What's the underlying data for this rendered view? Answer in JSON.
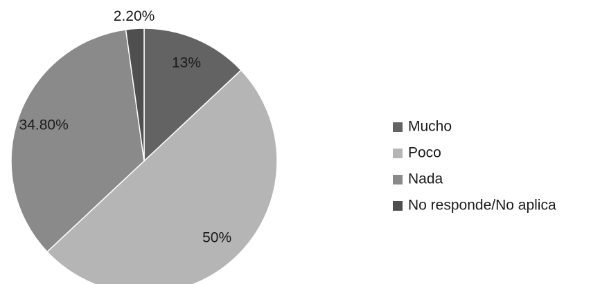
{
  "chart_data": {
    "type": "pie",
    "categories": [
      "Mucho",
      "Poco",
      "Nada",
      "No responde/No aplica"
    ],
    "values": [
      13,
      50,
      34.8,
      2.2
    ],
    "value_labels": [
      "13%",
      "50%",
      "34.80%",
      "2.20%"
    ],
    "colors": [
      "#636363",
      "#b5b5b5",
      "#8a8a8a",
      "#4f4f4f"
    ],
    "legend": "right"
  }
}
